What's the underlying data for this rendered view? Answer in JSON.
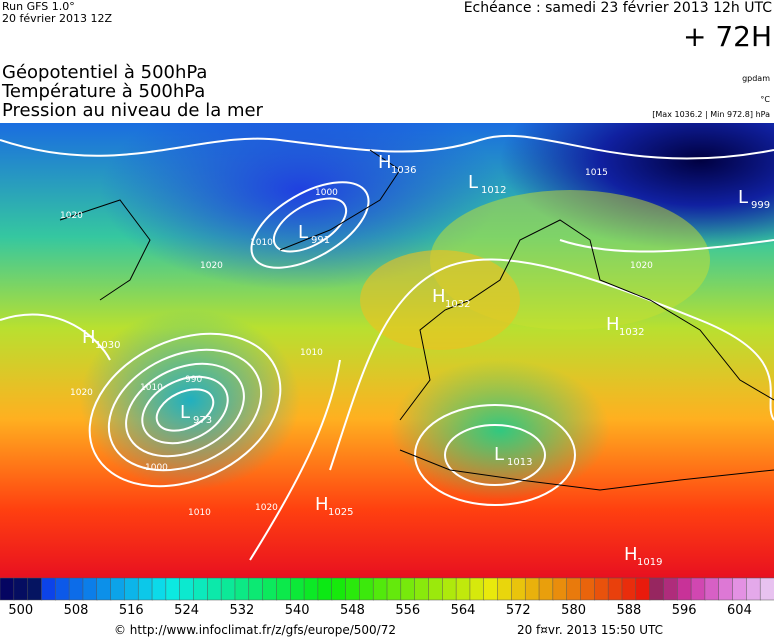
{
  "header": {
    "run": "Run GFS 1.0°",
    "run_date": "20 février 2013 12Z",
    "valid": "Echéance : samedi 23 février 2013 12h UTC",
    "lead": "+ 72H",
    "titles": [
      "Géopotentiel à 500hPa",
      "Température à 500hPa",
      "Pression au niveau de la mer"
    ],
    "units": [
      "gpdam",
      "°C",
      "[Max 1036.2 | Min 972.8] hPa"
    ]
  },
  "pressure_centers": [
    {
      "kind": "H",
      "value": "1036"
    },
    {
      "kind": "L",
      "value": "1012"
    },
    {
      "kind": "L",
      "value": "999"
    },
    {
      "kind": "L",
      "value": "991"
    },
    {
      "kind": "H",
      "value": "1032"
    },
    {
      "kind": "H",
      "value": "1032"
    },
    {
      "kind": "H",
      "value": "1030"
    },
    {
      "kind": "L",
      "value": "973"
    },
    {
      "kind": "L",
      "value": "1013"
    },
    {
      "kind": "H",
      "value": "1025"
    },
    {
      "kind": "H",
      "value": "1019"
    }
  ],
  "isobar_labels": [
    "1020",
    "1010",
    "1000",
    "1020",
    "990",
    "1010",
    "1000",
    "1010",
    "1020",
    "1020",
    "1010",
    "1020",
    "1015"
  ],
  "colorbar_labels": [
    "500",
    "508",
    "516",
    "524",
    "532",
    "540",
    "548",
    "556",
    "564",
    "572",
    "580",
    "588",
    "596",
    "604"
  ],
  "footer": {
    "source": "© http://www.infoclimat.fr/z/gfs/europe/500/72",
    "generated": "20 f¤vr. 2013 15:50 UTC"
  }
}
